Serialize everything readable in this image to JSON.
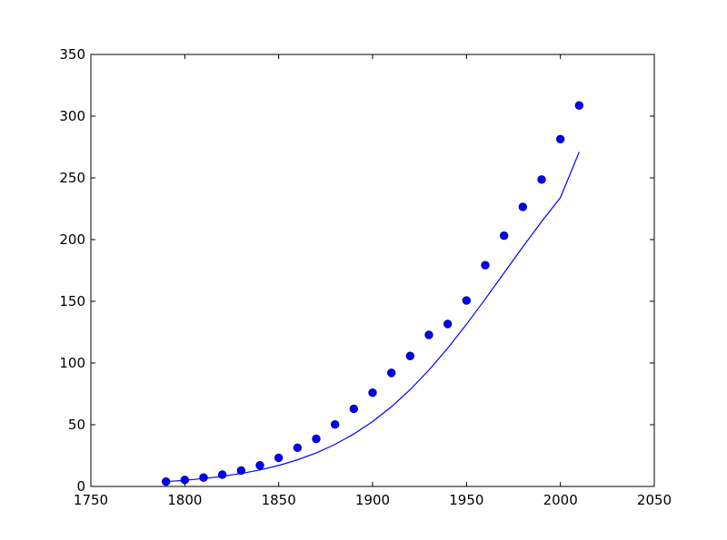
{
  "chart_data": {
    "type": "scatter",
    "title": "",
    "xlabel": "",
    "ylabel": "",
    "xlim": [
      1750,
      2050
    ],
    "ylim": [
      0,
      350
    ],
    "xticks": [
      1750,
      1800,
      1850,
      1900,
      1950,
      2000,
      2050
    ],
    "yticks": [
      0,
      50,
      100,
      150,
      200,
      250,
      300,
      350
    ],
    "grid": false,
    "legend": "none",
    "colors": {
      "points": "#0000ff",
      "points_edge": "#000080",
      "line": "#0000ff"
    },
    "series": [
      {
        "kind": "scatter",
        "x": [
          1790,
          1800,
          1810,
          1820,
          1830,
          1840,
          1850,
          1860,
          1870,
          1880,
          1890,
          1900,
          1910,
          1920,
          1930,
          1940,
          1950,
          1960,
          1970,
          1980,
          1990,
          2000,
          2010
        ],
        "y": [
          3.9,
          5.3,
          7.2,
          9.6,
          12.9,
          17.1,
          23.2,
          31.4,
          38.6,
          50.2,
          62.9,
          76.0,
          92.0,
          105.7,
          122.8,
          131.7,
          150.7,
          179.3,
          203.2,
          226.5,
          248.7,
          281.4,
          308.7
        ]
      },
      {
        "kind": "line",
        "x": [
          1790,
          1800,
          1810,
          1820,
          1830,
          1840,
          1850,
          1860,
          1870,
          1880,
          1890,
          1900,
          1910,
          1920,
          1930,
          1940,
          1950,
          1960,
          1970,
          1980,
          1990,
          2000,
          2010
        ],
        "y": [
          3.9,
          5.0,
          6.4,
          8.2,
          10.5,
          13.4,
          17.0,
          21.6,
          27.2,
          34.1,
          42.5,
          52.6,
          64.5,
          78.4,
          94.3,
          112.0,
          131.4,
          151.9,
          173.0,
          194.1,
          214.6,
          234.0,
          271.0
        ]
      }
    ]
  }
}
